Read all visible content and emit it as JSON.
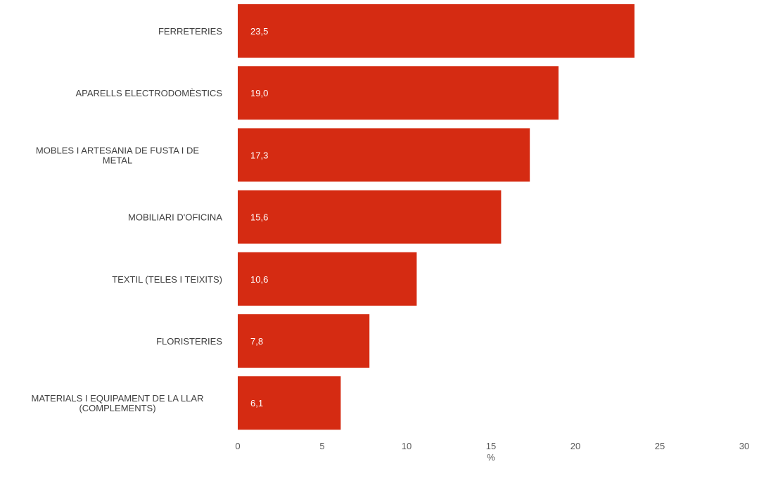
{
  "chart_data": {
    "type": "bar",
    "orientation": "horizontal",
    "categories": [
      "FERRETERIES",
      "APARELLS  ELECTRODOMÈSTICS",
      "MOBLES I ARTESANIA  DE FUSTA I  DE METAL",
      "MOBILIARI D'OFICINA",
      "TEXTIL (TELES  I TEIXITS)",
      "FLORISTERIES",
      "MATERIALS I EQUIPAMENT DE LA LLAR (COMPLEMENTS)"
    ],
    "category_lines": [
      [
        "FERRETERIES"
      ],
      [
        "APARELLS  ELECTRODOMÈSTICS"
      ],
      [
        "MOBLES I ARTESANIA  DE FUSTA I  DE",
        "METAL"
      ],
      [
        "MOBILIARI D'OFICINA"
      ],
      [
        "TEXTIL (TELES  I TEIXITS)"
      ],
      [
        "FLORISTERIES"
      ],
      [
        "MATERIALS I EQUIPAMENT DE LA LLAR",
        "(COMPLEMENTS)"
      ]
    ],
    "values": [
      23.5,
      19.0,
      17.3,
      15.6,
      10.6,
      7.8,
      6.1
    ],
    "value_labels": [
      "23,5",
      "19,0",
      "17,3",
      "15,6",
      "10,6",
      "7,8",
      "6,1"
    ],
    "xlim": [
      0,
      30
    ],
    "xticks": [
      0,
      5,
      10,
      15,
      20,
      25,
      30
    ],
    "xlabel": "%",
    "title": "",
    "grid": false,
    "legend": "none",
    "colors": {
      "bar": "#d52b12",
      "value_text": "#ffffff",
      "category_text": "#404040",
      "tick_text": "#595959"
    }
  }
}
